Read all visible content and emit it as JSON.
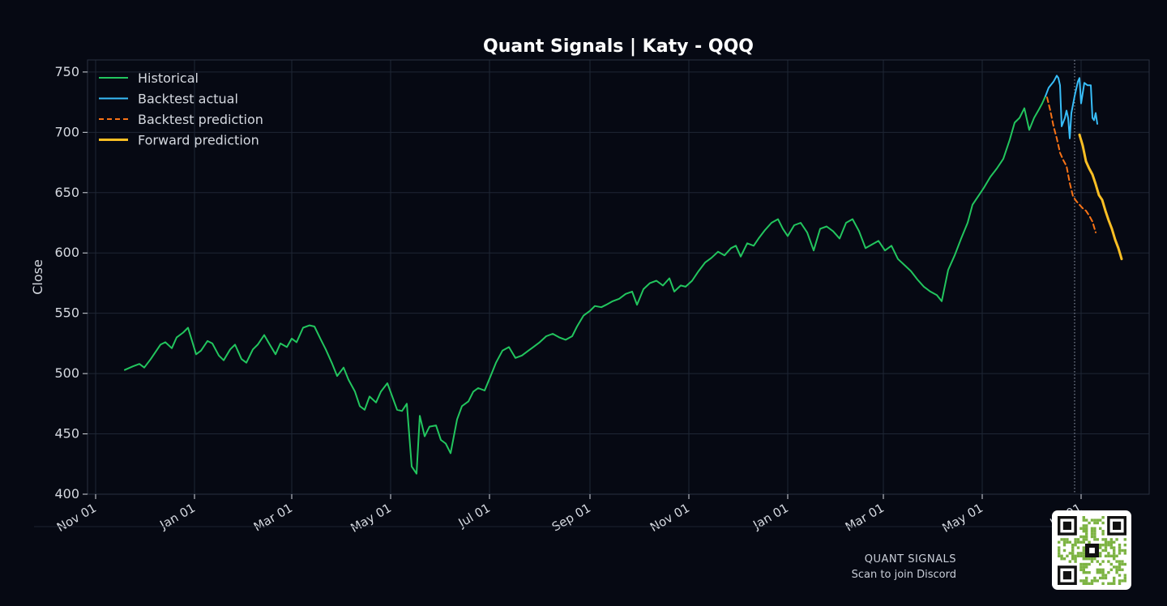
{
  "colors": {
    "background": "#060913",
    "plot_border": "#2a3140",
    "grid": "#1f2635",
    "text": "#d5d9e0",
    "historical": "#22c55e",
    "backtest_actual": "#38bdf8",
    "backtest_prediction": "#f97316",
    "forward_prediction": "#fbbf24",
    "cutoff_line": "#9aa3b5"
  },
  "footer": {
    "brand": "QUANT SIGNALS",
    "tagline": "Scan to join Discord",
    "qr_icon": "qr-code-icon"
  },
  "chart_data": {
    "type": "line",
    "title": "Quant Signals | Katy - QQQ",
    "xlabel": "",
    "ylabel": "Close",
    "ylim": [
      400,
      760
    ],
    "yticks": [
      400,
      450,
      500,
      550,
      600,
      650,
      700,
      750
    ],
    "xlim": [
      "2023-10-27",
      "2025-08-12"
    ],
    "xticks": [
      {
        "date": "2023-11-01",
        "label": "Nov 01"
      },
      {
        "date": "2024-01-01",
        "label": "Jan 01"
      },
      {
        "date": "2024-03-01",
        "label": "Mar 01"
      },
      {
        "date": "2024-05-01",
        "label": "May 01"
      },
      {
        "date": "2024-07-01",
        "label": "Jul 01"
      },
      {
        "date": "2024-09-01",
        "label": "Sep 01"
      },
      {
        "date": "2024-11-01",
        "label": "Nov 01"
      },
      {
        "date": "2025-01-01",
        "label": "Jan 01"
      },
      {
        "date": "2025-03-01",
        "label": "Mar 01"
      },
      {
        "date": "2025-05-01",
        "label": "May 01"
      },
      {
        "date": "2025-07-01",
        "label": "Jul 01"
      }
    ],
    "grid": true,
    "legend_position": "top-left",
    "cutoff_date": "2025-06-27",
    "series": [
      {
        "name": "Historical",
        "style": "solid",
        "points": [
          [
            "2023-11-19",
            503
          ],
          [
            "2023-11-24",
            506
          ],
          [
            "2023-11-28",
            508
          ],
          [
            "2023-12-01",
            505
          ],
          [
            "2023-12-05",
            512
          ],
          [
            "2023-12-08",
            518
          ],
          [
            "2023-12-11",
            524
          ],
          [
            "2023-12-14",
            526
          ],
          [
            "2023-12-18",
            521
          ],
          [
            "2023-12-21",
            530
          ],
          [
            "2023-12-25",
            534
          ],
          [
            "2023-12-28",
            538
          ],
          [
            "2024-01-02",
            516
          ],
          [
            "2024-01-05",
            519
          ],
          [
            "2024-01-09",
            527
          ],
          [
            "2024-01-12",
            525
          ],
          [
            "2024-01-16",
            515
          ],
          [
            "2024-01-19",
            511
          ],
          [
            "2024-01-23",
            520
          ],
          [
            "2024-01-26",
            524
          ],
          [
            "2024-01-30",
            512
          ],
          [
            "2024-02-02",
            509
          ],
          [
            "2024-02-06",
            520
          ],
          [
            "2024-02-09",
            524
          ],
          [
            "2024-02-13",
            532
          ],
          [
            "2024-02-16",
            525
          ],
          [
            "2024-02-20",
            516
          ],
          [
            "2024-02-23",
            525
          ],
          [
            "2024-02-27",
            522
          ],
          [
            "2024-03-01",
            529
          ],
          [
            "2024-03-04",
            526
          ],
          [
            "2024-03-08",
            538
          ],
          [
            "2024-03-12",
            540
          ],
          [
            "2024-03-15",
            539
          ],
          [
            "2024-03-19",
            528
          ],
          [
            "2024-03-22",
            520
          ],
          [
            "2024-03-26",
            508
          ],
          [
            "2024-03-29",
            498
          ],
          [
            "2024-04-02",
            505
          ],
          [
            "2024-04-05",
            495
          ],
          [
            "2024-04-09",
            485
          ],
          [
            "2024-04-12",
            473
          ],
          [
            "2024-04-15",
            470
          ],
          [
            "2024-04-18",
            481
          ],
          [
            "2024-04-22",
            476
          ],
          [
            "2024-04-25",
            485
          ],
          [
            "2024-04-29",
            492
          ],
          [
            "2024-05-02",
            481
          ],
          [
            "2024-05-05",
            470
          ],
          [
            "2024-05-08",
            469
          ],
          [
            "2024-05-11",
            475
          ],
          [
            "2024-05-14",
            423
          ],
          [
            "2024-05-17",
            417
          ],
          [
            "2024-05-19",
            465
          ],
          [
            "2024-05-22",
            448
          ],
          [
            "2024-05-25",
            456
          ],
          [
            "2024-05-29",
            457
          ],
          [
            "2024-06-01",
            445
          ],
          [
            "2024-06-04",
            442
          ],
          [
            "2024-06-07",
            434
          ],
          [
            "2024-06-11",
            462
          ],
          [
            "2024-06-14",
            473
          ],
          [
            "2024-06-18",
            477
          ],
          [
            "2024-06-21",
            485
          ],
          [
            "2024-06-24",
            488
          ],
          [
            "2024-06-28",
            486
          ],
          [
            "2024-07-02",
            499
          ],
          [
            "2024-07-05",
            509
          ],
          [
            "2024-07-09",
            519
          ],
          [
            "2024-07-13",
            522
          ],
          [
            "2024-07-17",
            513
          ],
          [
            "2024-07-21",
            515
          ],
          [
            "2024-07-25",
            519
          ],
          [
            "2024-07-28",
            522
          ],
          [
            "2024-08-01",
            526
          ],
          [
            "2024-08-05",
            531
          ],
          [
            "2024-08-09",
            533
          ],
          [
            "2024-08-13",
            530
          ],
          [
            "2024-08-17",
            528
          ],
          [
            "2024-08-21",
            531
          ],
          [
            "2024-08-24",
            539
          ],
          [
            "2024-08-28",
            548
          ],
          [
            "2024-09-01",
            552
          ],
          [
            "2024-09-04",
            556
          ],
          [
            "2024-09-08",
            555
          ],
          [
            "2024-09-11",
            557
          ],
          [
            "2024-09-15",
            560
          ],
          [
            "2024-09-19",
            562
          ],
          [
            "2024-09-23",
            566
          ],
          [
            "2024-09-27",
            568
          ],
          [
            "2024-09-30",
            557
          ],
          [
            "2024-10-04",
            570
          ],
          [
            "2024-10-08",
            575
          ],
          [
            "2024-10-12",
            577
          ],
          [
            "2024-10-16",
            573
          ],
          [
            "2024-10-20",
            579
          ],
          [
            "2024-10-23",
            568
          ],
          [
            "2024-10-27",
            573
          ],
          [
            "2024-10-30",
            572
          ],
          [
            "2024-11-03",
            577
          ],
          [
            "2024-11-07",
            585
          ],
          [
            "2024-11-11",
            592
          ],
          [
            "2024-11-15",
            596
          ],
          [
            "2024-11-19",
            601
          ],
          [
            "2024-11-23",
            598
          ],
          [
            "2024-11-27",
            604
          ],
          [
            "2024-11-30",
            606
          ],
          [
            "2024-12-03",
            597
          ],
          [
            "2024-12-07",
            608
          ],
          [
            "2024-12-11",
            606
          ],
          [
            "2024-12-14",
            612
          ],
          [
            "2024-12-18",
            619
          ],
          [
            "2024-12-22",
            625
          ],
          [
            "2024-12-26",
            628
          ],
          [
            "2024-12-29",
            620
          ],
          [
            "2025-01-01",
            614
          ],
          [
            "2025-01-05",
            623
          ],
          [
            "2025-01-09",
            625
          ],
          [
            "2025-01-13",
            617
          ],
          [
            "2025-01-17",
            602
          ],
          [
            "2025-01-21",
            620
          ],
          [
            "2025-01-25",
            622
          ],
          [
            "2025-01-29",
            618
          ],
          [
            "2025-02-02",
            612
          ],
          [
            "2025-02-06",
            625
          ],
          [
            "2025-02-10",
            628
          ],
          [
            "2025-02-14",
            618
          ],
          [
            "2025-02-18",
            604
          ],
          [
            "2025-02-22",
            607
          ],
          [
            "2025-02-26",
            610
          ],
          [
            "2025-03-02",
            602
          ],
          [
            "2025-03-06",
            606
          ],
          [
            "2025-03-10",
            595
          ],
          [
            "2025-03-14",
            590
          ],
          [
            "2025-03-18",
            585
          ],
          [
            "2025-03-22",
            578
          ],
          [
            "2025-03-26",
            572
          ],
          [
            "2025-03-30",
            568
          ],
          [
            "2025-04-03",
            565
          ],
          [
            "2025-04-06",
            560
          ],
          [
            "2025-04-10",
            586
          ],
          [
            "2025-04-14",
            598
          ],
          [
            "2025-04-18",
            612
          ],
          [
            "2025-04-22",
            625
          ],
          [
            "2025-04-25",
            640
          ],
          [
            "2025-04-29",
            648
          ],
          [
            "2025-05-02",
            654
          ],
          [
            "2025-05-06",
            663
          ],
          [
            "2025-05-10",
            670
          ],
          [
            "2025-05-14",
            678
          ],
          [
            "2025-05-18",
            694
          ],
          [
            "2025-05-21",
            708
          ],
          [
            "2025-05-24",
            712
          ],
          [
            "2025-05-27",
            720
          ],
          [
            "2025-05-30",
            702
          ],
          [
            "2025-06-02",
            712
          ],
          [
            "2025-06-05",
            719
          ],
          [
            "2025-06-07",
            724
          ],
          [
            "2025-06-09",
            730
          ]
        ]
      },
      {
        "name": "Backtest actual",
        "style": "solid",
        "points": [
          [
            "2025-06-09",
            730
          ],
          [
            "2025-06-11",
            737
          ],
          [
            "2025-06-14",
            742
          ],
          [
            "2025-06-16",
            747
          ],
          [
            "2025-06-17",
            745
          ],
          [
            "2025-06-18",
            739
          ],
          [
            "2025-06-19",
            705
          ],
          [
            "2025-06-21",
            712
          ],
          [
            "2025-06-22",
            718
          ],
          [
            "2025-06-23",
            712
          ],
          [
            "2025-06-24",
            695
          ],
          [
            "2025-06-25",
            716
          ],
          [
            "2025-06-27",
            730
          ],
          [
            "2025-06-29",
            742
          ],
          [
            "2025-06-30",
            745
          ],
          [
            "2025-07-01",
            724
          ],
          [
            "2025-07-03",
            741
          ],
          [
            "2025-07-05",
            739
          ],
          [
            "2025-07-07",
            739
          ],
          [
            "2025-07-08",
            712
          ],
          [
            "2025-07-09",
            710
          ],
          [
            "2025-07-10",
            716
          ],
          [
            "2025-07-11",
            707
          ]
        ]
      },
      {
        "name": "Backtest prediction",
        "style": "dashed",
        "points": [
          [
            "2025-06-10",
            729
          ],
          [
            "2025-06-12",
            718
          ],
          [
            "2025-06-14",
            705
          ],
          [
            "2025-06-16",
            695
          ],
          [
            "2025-06-18",
            683
          ],
          [
            "2025-06-20",
            677
          ],
          [
            "2025-06-22",
            672
          ],
          [
            "2025-06-24",
            658
          ],
          [
            "2025-06-26",
            647
          ],
          [
            "2025-06-28",
            643
          ],
          [
            "2025-06-30",
            640
          ],
          [
            "2025-07-02",
            637
          ],
          [
            "2025-07-04",
            635
          ],
          [
            "2025-07-06",
            631
          ],
          [
            "2025-07-08",
            626
          ],
          [
            "2025-07-10",
            617
          ]
        ]
      },
      {
        "name": "Forward prediction",
        "style": "solid-thick",
        "points": [
          [
            "2025-06-30",
            698
          ],
          [
            "2025-07-02",
            689
          ],
          [
            "2025-07-04",
            676
          ],
          [
            "2025-07-06",
            670
          ],
          [
            "2025-07-08",
            665
          ],
          [
            "2025-07-10",
            657
          ],
          [
            "2025-07-12",
            648
          ],
          [
            "2025-07-14",
            644
          ],
          [
            "2025-07-16",
            635
          ],
          [
            "2025-07-18",
            627
          ],
          [
            "2025-07-20",
            620
          ],
          [
            "2025-07-22",
            611
          ],
          [
            "2025-07-24",
            604
          ],
          [
            "2025-07-26",
            595
          ]
        ]
      }
    ]
  }
}
